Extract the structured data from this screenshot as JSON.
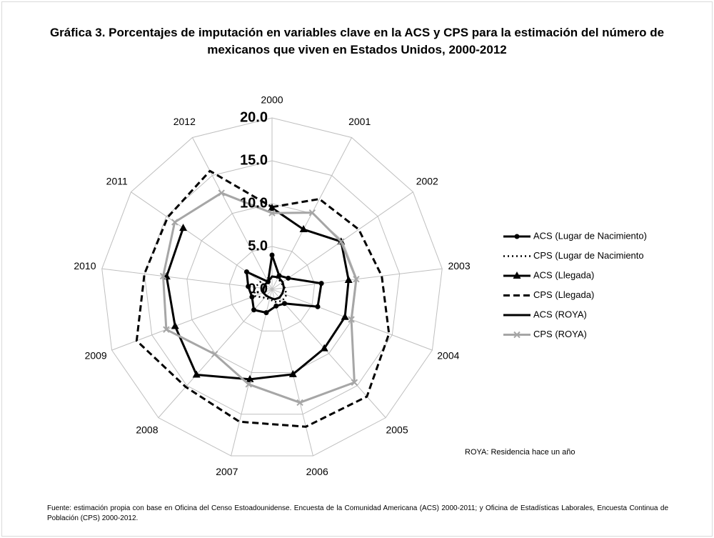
{
  "chart_data": {
    "type": "radar",
    "title": "Gráfica 3. Porcentajes de imputación en variables clave en la ACS y CPS para la estimación del número de mexicanos que viven en Estados Unidos, 2000-2012",
    "categories": [
      "2000",
      "2001",
      "2002",
      "2003",
      "2004",
      "2005",
      "2006",
      "2007",
      "2008",
      "2009",
      "2010",
      "2011",
      "2012"
    ],
    "rlim": [
      0,
      20
    ],
    "rticks": [
      {
        "value": 0,
        "label": "0.0"
      },
      {
        "value": 5,
        "label": "5.0"
      },
      {
        "value": 10,
        "label": "10.0"
      },
      {
        "value": 15,
        "label": "15.0"
      },
      {
        "value": 20,
        "label": "20.0"
      }
    ],
    "grid": true,
    "legend": "right",
    "series": [
      {
        "name": "ACS (Lugar de Nacimiento)",
        "color": "#000000",
        "line": "solid",
        "marker": "circle",
        "values": [
          4.0,
          1.8,
          2.3,
          5.8,
          5.7,
          2.2,
          2.0,
          2.8,
          3.2,
          2.5,
          2.8,
          3.6,
          1.0
        ]
      },
      {
        "name": "CPS (Lugar de Nacimiento",
        "color": "#000000",
        "line": "dotted",
        "marker": "none",
        "values": [
          1.5,
          1.5,
          1.3,
          1.5,
          1.8,
          1.8,
          1.5,
          1.2,
          1.3,
          2.2,
          2.0,
          1.6,
          1.4
        ]
      },
      {
        "name": "ACS (Llegada)",
        "color": "#000000",
        "line": "solid",
        "marker": "triangle",
        "values": [
          9.5,
          7.9,
          9.8,
          9.0,
          9.1,
          9.2,
          10.2,
          10.8,
          13.3,
          12.1,
          12.4,
          12.6,
          null
        ]
      },
      {
        "name": "CPS (Llegada)",
        "color": "#000000",
        "line": "dashed",
        "marker": "none",
        "values": [
          9.6,
          11.9,
          12.3,
          12.9,
          14.6,
          16.7,
          16.5,
          15.9,
          15.2,
          16.9,
          15.0,
          14.8,
          15.6
        ]
      },
      {
        "name": "ACS (ROYA)",
        "color": "#000000",
        "line": "solid",
        "marker": "none",
        "values": [
          1.5,
          1.6,
          1.5,
          1.4,
          1.3,
          1.3,
          1.2,
          1.0,
          1.0,
          1.1,
          1.0,
          1.0,
          1.0
        ]
      },
      {
        "name": "CPS (ROYA)",
        "color": "#a6a6a6",
        "line": "solid",
        "marker": "x",
        "values": [
          8.9,
          10.1,
          9.8,
          9.9,
          9.9,
          14.5,
          13.6,
          11.4,
          10.1,
          13.2,
          12.8,
          13.8,
          12.7
        ]
      }
    ],
    "note": "ROYA: Residencia hace un año",
    "source": "Fuente: estimación propia con base en Oficina del Censo Estoadounidense. Encuesta de la Comunidad Americana (ACS) 2000-2011; y Oficina de Estadísticas Laborales, Encuesta Continua de Población (CPS) 2000-2012."
  }
}
